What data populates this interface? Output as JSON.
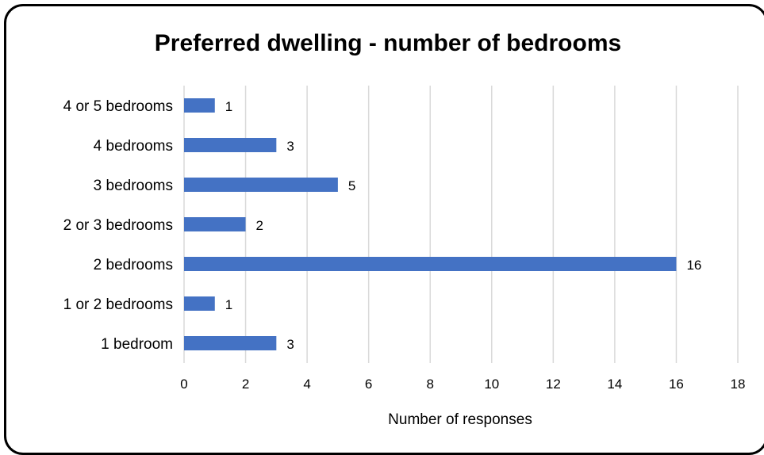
{
  "chart_data": {
    "type": "bar",
    "orientation": "horizontal",
    "title": "Preferred dwelling - number of bedrooms",
    "xlabel": "Number of responses",
    "ylabel": "",
    "categories": [
      "1 bedroom",
      "1 or 2 bedrooms",
      "2 bedrooms",
      "2 or 3 bedrooms",
      "3 bedrooms",
      "4 bedrooms",
      "4 or 5 bedrooms"
    ],
    "values": [
      3,
      1,
      16,
      2,
      5,
      3,
      1
    ],
    "xlim": [
      0,
      18
    ],
    "xticks": [
      "0",
      "2",
      "4",
      "6",
      "8",
      "10",
      "12",
      "14",
      "16",
      "18"
    ],
    "data_labels": [
      "3",
      "1",
      "16",
      "2",
      "5",
      "3",
      "1"
    ],
    "grid": true,
    "legend": "none",
    "bar_color": "#4472c4",
    "grid_color": "#d9d9d9"
  }
}
